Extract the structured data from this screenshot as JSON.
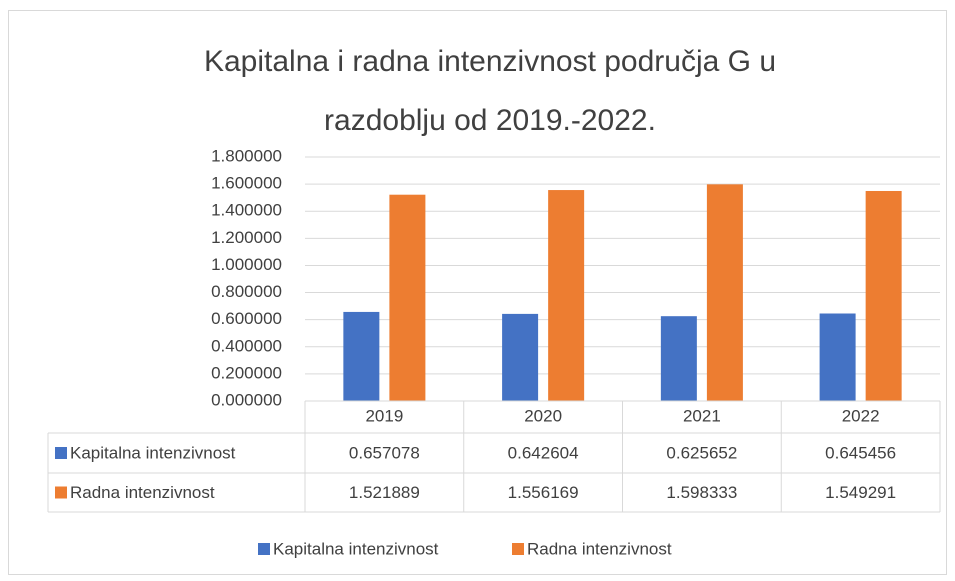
{
  "chart_data": {
    "type": "bar",
    "title": [
      "Kapitalna i radna intenzivnost područja G u",
      "razdoblju od 2019.-2022."
    ],
    "categories": [
      "2019",
      "2020",
      "2021",
      "2022"
    ],
    "series": [
      {
        "name": "Kapitalna intenzivnost",
        "color": "#4472c4",
        "values": [
          0.657078,
          0.642604,
          0.625652,
          0.645456
        ]
      },
      {
        "name": "Radna intenzivnost",
        "color": "#ed7d31",
        "values": [
          1.521889,
          1.556169,
          1.598333,
          1.549291
        ]
      }
    ],
    "ylim": [
      0,
      1.8
    ],
    "yticks": [
      {
        "value": 0,
        "label": "0.000000"
      },
      {
        "value": 0.2,
        "label": "0.200000"
      },
      {
        "value": 0.4,
        "label": "0.400000"
      },
      {
        "value": 0.6,
        "label": "0.600000"
      },
      {
        "value": 0.8,
        "label": "0.800000"
      },
      {
        "value": 1,
        "label": "1.000000"
      },
      {
        "value": 1.2,
        "label": "1.200000"
      },
      {
        "value": 1.4,
        "label": "1.400000"
      },
      {
        "value": 1.6,
        "label": "1.600000"
      },
      {
        "value": 1.8,
        "label": "1.800000"
      }
    ],
    "grid": true,
    "legend": "bottom",
    "data_table": true
  }
}
